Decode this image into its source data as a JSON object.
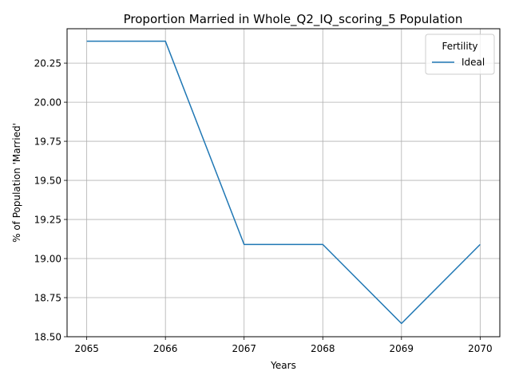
{
  "chart_data": {
    "type": "line",
    "title": "Proportion Married in Whole_Q2_IQ_scoring_5 Population",
    "xlabel": "Years",
    "ylabel": "% of Population 'Married'",
    "x": [
      2065,
      2066,
      2067,
      2068,
      2069,
      2070
    ],
    "xticks": [
      "2065",
      "2066",
      "2067",
      "2068",
      "2069",
      "2070"
    ],
    "yticks": [
      "18.50",
      "18.75",
      "19.00",
      "19.25",
      "19.50",
      "19.75",
      "20.00",
      "20.25"
    ],
    "ytick_values": [
      18.5,
      18.75,
      19.0,
      19.25,
      19.5,
      19.75,
      20.0,
      20.25
    ],
    "xlim": [
      2064.75,
      2070.25
    ],
    "ylim": [
      18.5,
      20.47
    ],
    "grid": true,
    "legend": {
      "title": "Fertility",
      "placement": "top-right"
    },
    "series": [
      {
        "name": "Ideal",
        "color": "#1f77b4",
        "values": [
          20.39,
          20.39,
          19.09,
          19.09,
          18.585,
          19.09
        ]
      }
    ]
  }
}
